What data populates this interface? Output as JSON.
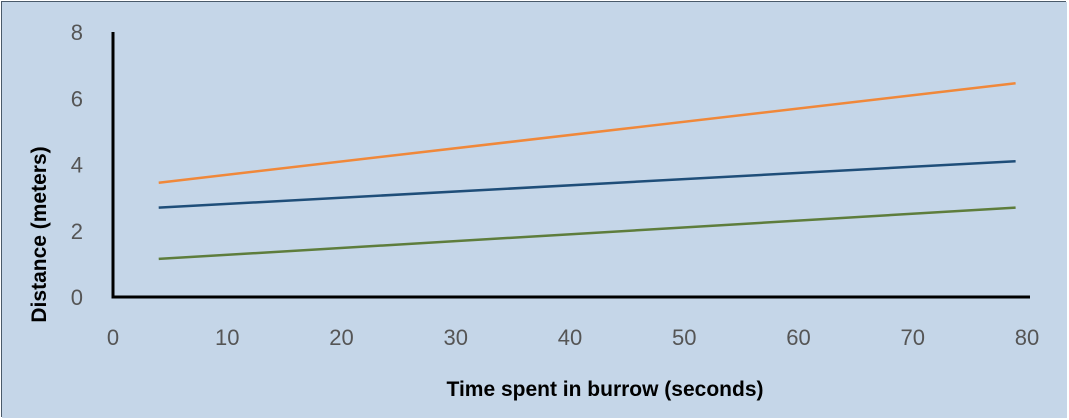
{
  "chart_data": {
    "type": "line",
    "title": "",
    "xlabel": "Time spent in burrow (seconds)",
    "ylabel": "Distance (meters)",
    "xlim": [
      0,
      80
    ],
    "ylim": [
      0,
      8
    ],
    "x_ticks": [
      "0",
      "10",
      "20",
      "30",
      "40",
      "50",
      "60",
      "70",
      "80"
    ],
    "y_ticks": [
      "0",
      "2",
      "4",
      "6",
      "8"
    ],
    "grid": false,
    "legend": "none",
    "background_color": "#c5d6e8",
    "series": [
      {
        "color": "#f0883a",
        "x": [
          4,
          79
        ],
        "y": [
          3.45,
          6.45
        ]
      },
      {
        "color": "#1f4e79",
        "x": [
          4,
          79
        ],
        "y": [
          2.7,
          4.1
        ]
      },
      {
        "color": "#5e7d3c",
        "x": [
          4,
          79
        ],
        "y": [
          1.15,
          2.7
        ]
      }
    ]
  }
}
